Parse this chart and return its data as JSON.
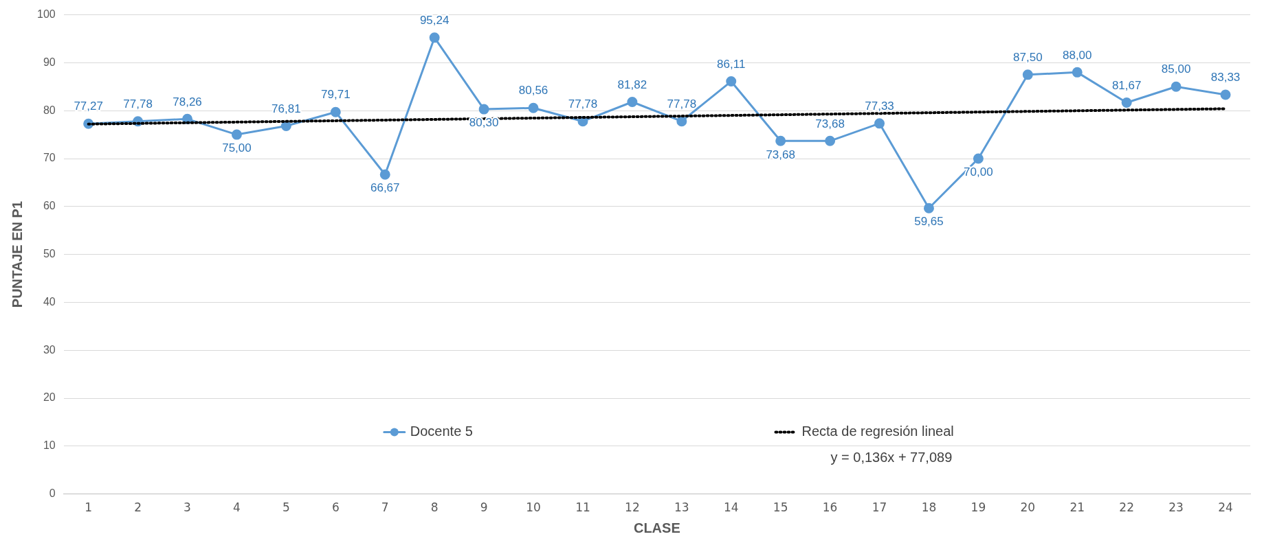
{
  "chart_data": {
    "type": "line",
    "xlabel": "CLASE",
    "ylabel": "PUNTAJE EN P1",
    "x": [
      1,
      2,
      3,
      4,
      5,
      6,
      7,
      8,
      9,
      10,
      11,
      12,
      13,
      14,
      15,
      16,
      17,
      18,
      19,
      20,
      21,
      22,
      23,
      24
    ],
    "series": [
      {
        "name": "Docente 5",
        "color": "#5b9bd5",
        "marker": "circle",
        "line_style": "solid",
        "values": [
          77.27,
          77.78,
          78.26,
          75.0,
          76.81,
          79.71,
          66.67,
          95.24,
          80.3,
          80.56,
          77.78,
          81.82,
          77.78,
          86.11,
          73.68,
          73.68,
          77.33,
          59.65,
          70.0,
          87.5,
          88.0,
          81.67,
          85.0,
          83.33
        ],
        "value_labels": [
          "77,27",
          "77,78",
          "78,26",
          "75,00",
          "76,81",
          "79,71",
          "66,67",
          "95,24",
          "80,30",
          "80,56",
          "77,78",
          "81,82",
          "77,78",
          "86,11",
          "73,68",
          "73,68",
          "77,33",
          "59,65",
          "70,00",
          "87,50",
          "88,00",
          "81,67",
          "85,00",
          "83,33"
        ]
      },
      {
        "name": "Recta de regresión lineal",
        "type": "line",
        "color": "#000000",
        "marker": "none",
        "line_style": "dotted",
        "x": [
          1,
          24
        ],
        "values": [
          77.2,
          80.4
        ]
      }
    ],
    "xlim": [
      0.5,
      24.5
    ],
    "xticks": [
      1,
      2,
      3,
      4,
      5,
      6,
      7,
      8,
      9,
      10,
      11,
      12,
      13,
      14,
      15,
      16,
      17,
      18,
      19,
      20,
      21,
      22,
      23,
      24
    ],
    "ylim": [
      0,
      100
    ],
    "yticks": [
      0,
      10,
      20,
      30,
      40,
      50,
      60,
      70,
      80,
      90,
      100
    ],
    "grid": "y",
    "legend": "bottom",
    "annotations": [
      "y = 0,136x + 77,089"
    ]
  }
}
